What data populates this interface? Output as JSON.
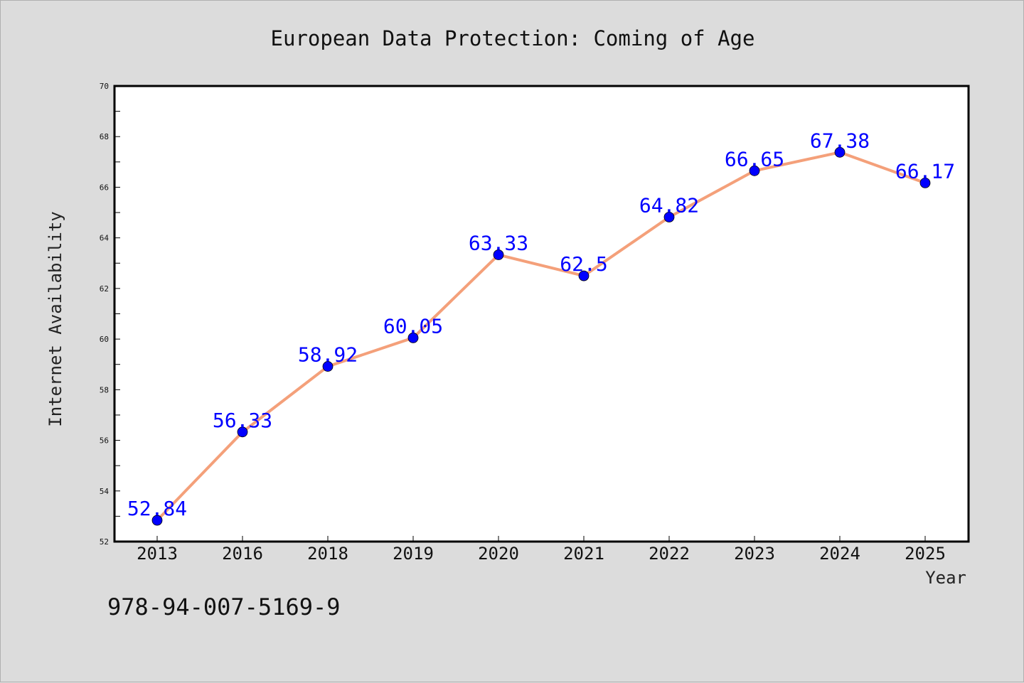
{
  "chart_data": {
    "type": "line",
    "title": "European Data Protection: Coming of Age",
    "xlabel": "Year",
    "ylabel": "Internet Availability",
    "categories": [
      "2013",
      "2016",
      "2018",
      "2019",
      "2020",
      "2021",
      "2022",
      "2023",
      "2024",
      "2025"
    ],
    "series": [
      {
        "values": [
          52.84,
          56.33,
          58.92,
          60.05,
          63.33,
          62.5,
          64.82,
          66.65,
          67.38,
          66.17
        ],
        "labels": [
          "52.84",
          "56.33",
          "58.92",
          "60.05",
          "63.33",
          "62.5",
          "64.82",
          "66.65",
          "67.38",
          "66.17"
        ]
      }
    ],
    "ylim": [
      52,
      70
    ],
    "yticks": [
      "52",
      "54",
      "56",
      "58",
      "60",
      "62",
      "64",
      "66",
      "68",
      "70"
    ],
    "grid": false,
    "line_color": "#f4a07a",
    "marker_color": "#0000ff",
    "label_color": "#0000ff"
  },
  "footer": {
    "isbn": "978-94-007-5169-9"
  }
}
